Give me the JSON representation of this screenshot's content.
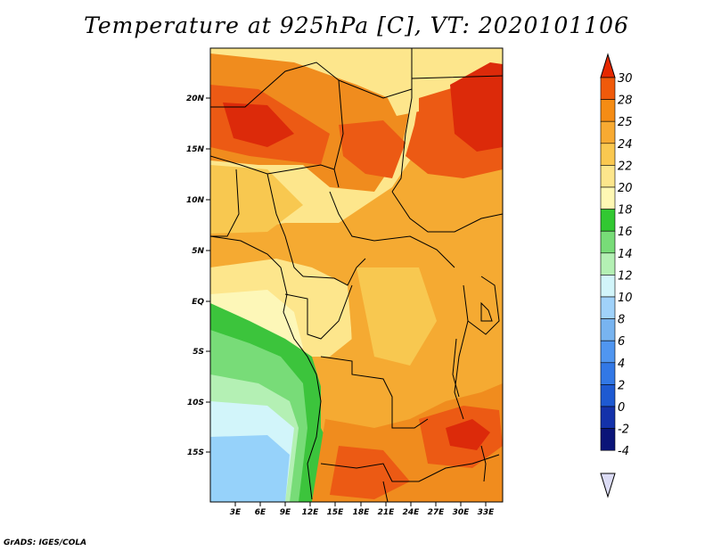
{
  "title": "Temperature at 925hPa [C], VT: 2020101106",
  "credit": "GrADS: IGES/COLA",
  "map": {
    "lat_labels": [
      "20N",
      "15N",
      "10N",
      "5N",
      "EQ",
      "5S",
      "10S",
      "15S"
    ],
    "lon_labels": [
      "3E",
      "6E",
      "9E",
      "12E",
      "15E",
      "18E",
      "21E",
      "24E",
      "27E",
      "30E",
      "33E"
    ],
    "colors": {
      "c30": "#dc2a0a",
      "c28": "#ec5a14",
      "c25": "#f08c1e",
      "c24": "#f5aa32",
      "c22": "#f8c850",
      "c20": "#fde68c",
      "c18": "#fdf7b8",
      "c16": "#3cc43c",
      "c14": "#78dc78",
      "c12": "#b4f0b4",
      "c10": "#d2f5fa",
      "c8": "#96d2fa"
    }
  },
  "colorbar": {
    "levels": [
      "30",
      "28",
      "25",
      "24",
      "22",
      "20",
      "18",
      "16",
      "14",
      "12",
      "10",
      "8",
      "6",
      "4",
      "2",
      "0",
      "-2",
      "-4"
    ],
    "colors": [
      "#e62800",
      "#f05a0a",
      "#f58c14",
      "#f8aa32",
      "#fac850",
      "#fde68c",
      "#fff8b4",
      "#32c832",
      "#78dc78",
      "#b4f0b4",
      "#d2f5fa",
      "#a0d2fa",
      "#78b4f0",
      "#5096f0",
      "#3278e6",
      "#1e5ad2",
      "#1432aa",
      "#0a1478",
      "#dcdcf5"
    ]
  }
}
